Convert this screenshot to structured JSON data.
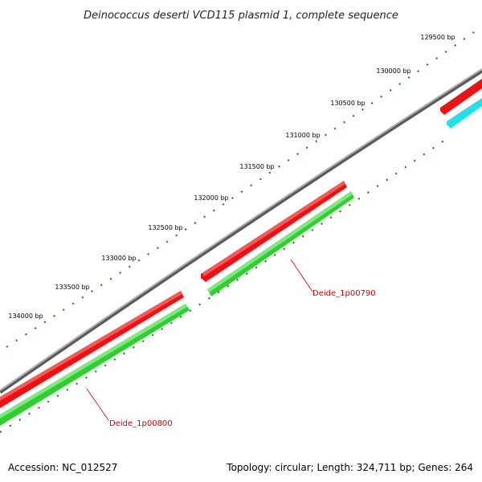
{
  "title": "Deinococcus deserti VCD115 plasmid 1, complete sequence",
  "footer": {
    "accession": "Accession: NC_012527",
    "summary": "Topology: circular; Length: 324,711 bp; Genes: 264"
  },
  "colors": {
    "backbone": "#8a8a8a",
    "forward_gene": "#ee1111",
    "reverse_gene": "#33cc33",
    "other_gene": "#22e0e8",
    "ticks": "#1a6e1a",
    "label": "#cc0000"
  },
  "ticks": [
    {
      "label": "129500 bp"
    },
    {
      "label": "130000 bp"
    },
    {
      "label": "130500 bp"
    },
    {
      "label": "131000 bp"
    },
    {
      "label": "131500 bp"
    },
    {
      "label": "132000 bp"
    },
    {
      "label": "132500 bp"
    },
    {
      "label": "133000 bp"
    },
    {
      "label": "133500 bp"
    },
    {
      "label": "134000 bp"
    }
  ],
  "gene_labels": [
    {
      "label": "Deide_1p00790"
    },
    {
      "label": "Deide_1p00800"
    }
  ]
}
